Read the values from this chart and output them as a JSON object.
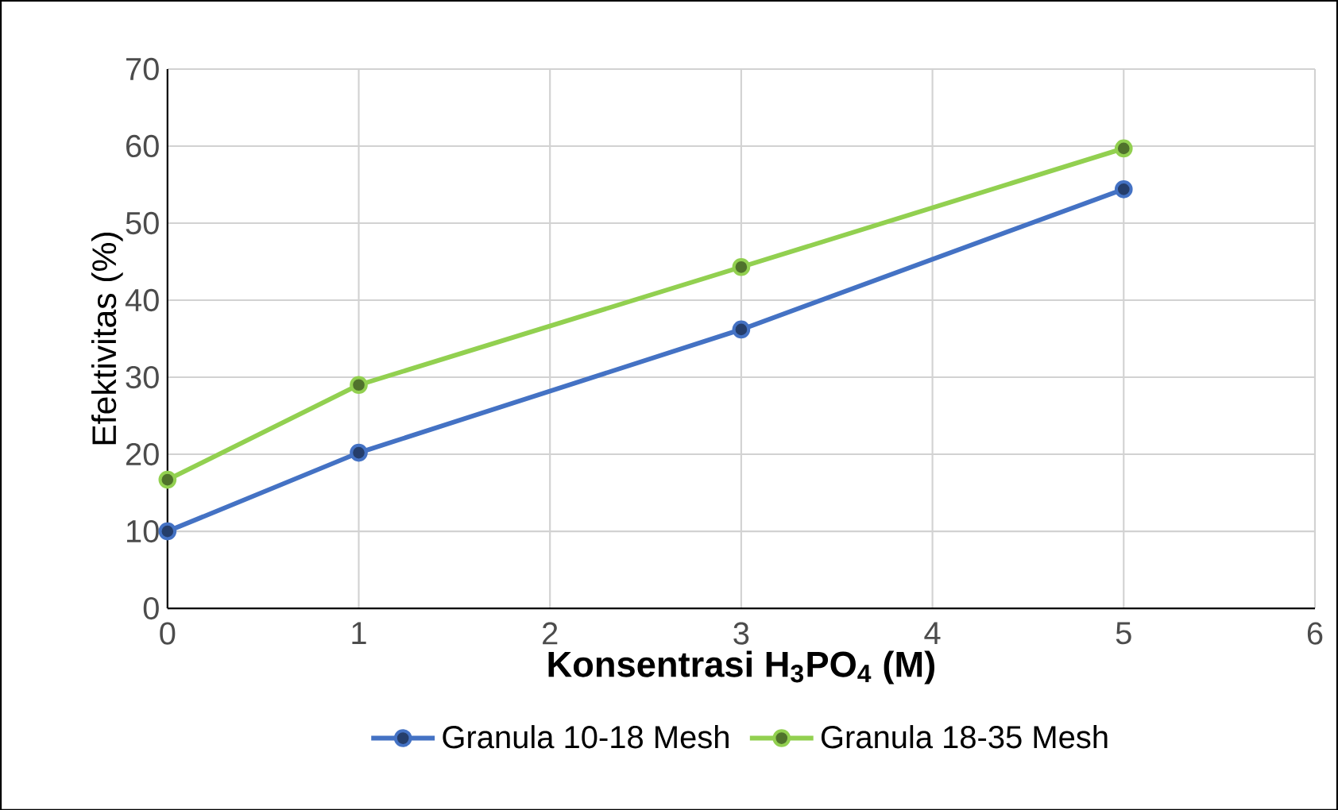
{
  "chart_data": {
    "type": "line",
    "xlabel": "Konsentrasi H$_{3}$PO$_{4}$ (M)",
    "ylabel": "Efektivitas (%)",
    "x": [
      0,
      1,
      3,
      5
    ],
    "series": [
      {
        "name": "Granula 10-18 Mesh",
        "color": "#4472c4",
        "values": [
          10,
          20.2,
          36.2,
          54.4
        ]
      },
      {
        "name": "Granula 18-35 Mesh",
        "color": "#92d050",
        "values": [
          16.7,
          29,
          44.3,
          59.7
        ]
      }
    ],
    "xlim": [
      0,
      6
    ],
    "xticks": [
      0,
      1,
      2,
      3,
      4,
      5,
      6
    ],
    "ylim": [
      0,
      70
    ],
    "yticks": [
      0,
      10,
      20,
      30,
      40,
      50,
      60,
      70
    ],
    "grid": true,
    "legend": "bottom",
    "marker": "circle",
    "line_style": "solid"
  }
}
